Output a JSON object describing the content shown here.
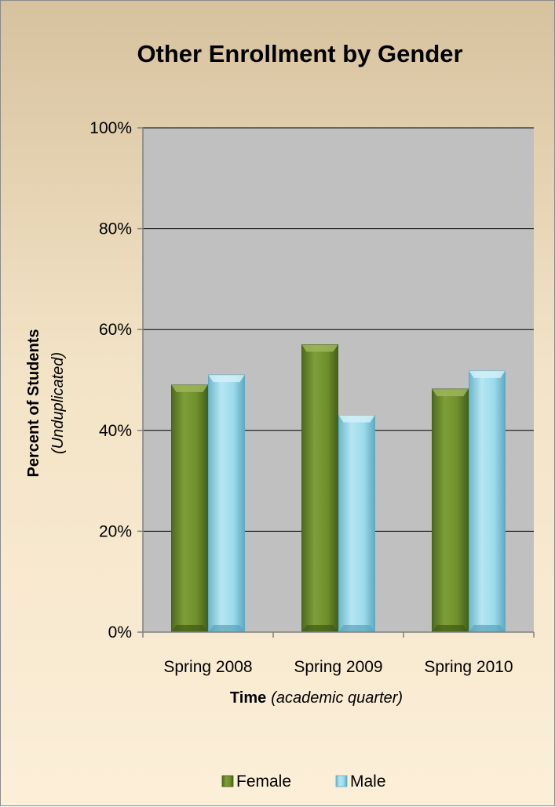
{
  "chart_data": {
    "type": "bar",
    "title": "Other Enrollment by Gender",
    "categories": [
      "Spring 2008",
      "Spring 2009",
      "Spring 2010"
    ],
    "series": [
      {
        "name": "Female",
        "values": [
          49,
          57,
          48.2
        ],
        "color": "#6f8f2c"
      },
      {
        "name": "Male",
        "values": [
          51,
          43,
          51.8
        ],
        "color": "#8fd3e6"
      }
    ],
    "ylim": [
      0,
      100
    ],
    "yticks": [
      "0%",
      "20%",
      "40%",
      "60%",
      "80%",
      "100%"
    ],
    "ylabel": "Percent of Students",
    "ylabel_sub": "(Unduplicated)",
    "xlabel": "Time",
    "xlabel_sub": "(academic quarter)",
    "grid": true,
    "plot_background": "#c0c0c0",
    "legend_position": "bottom"
  }
}
